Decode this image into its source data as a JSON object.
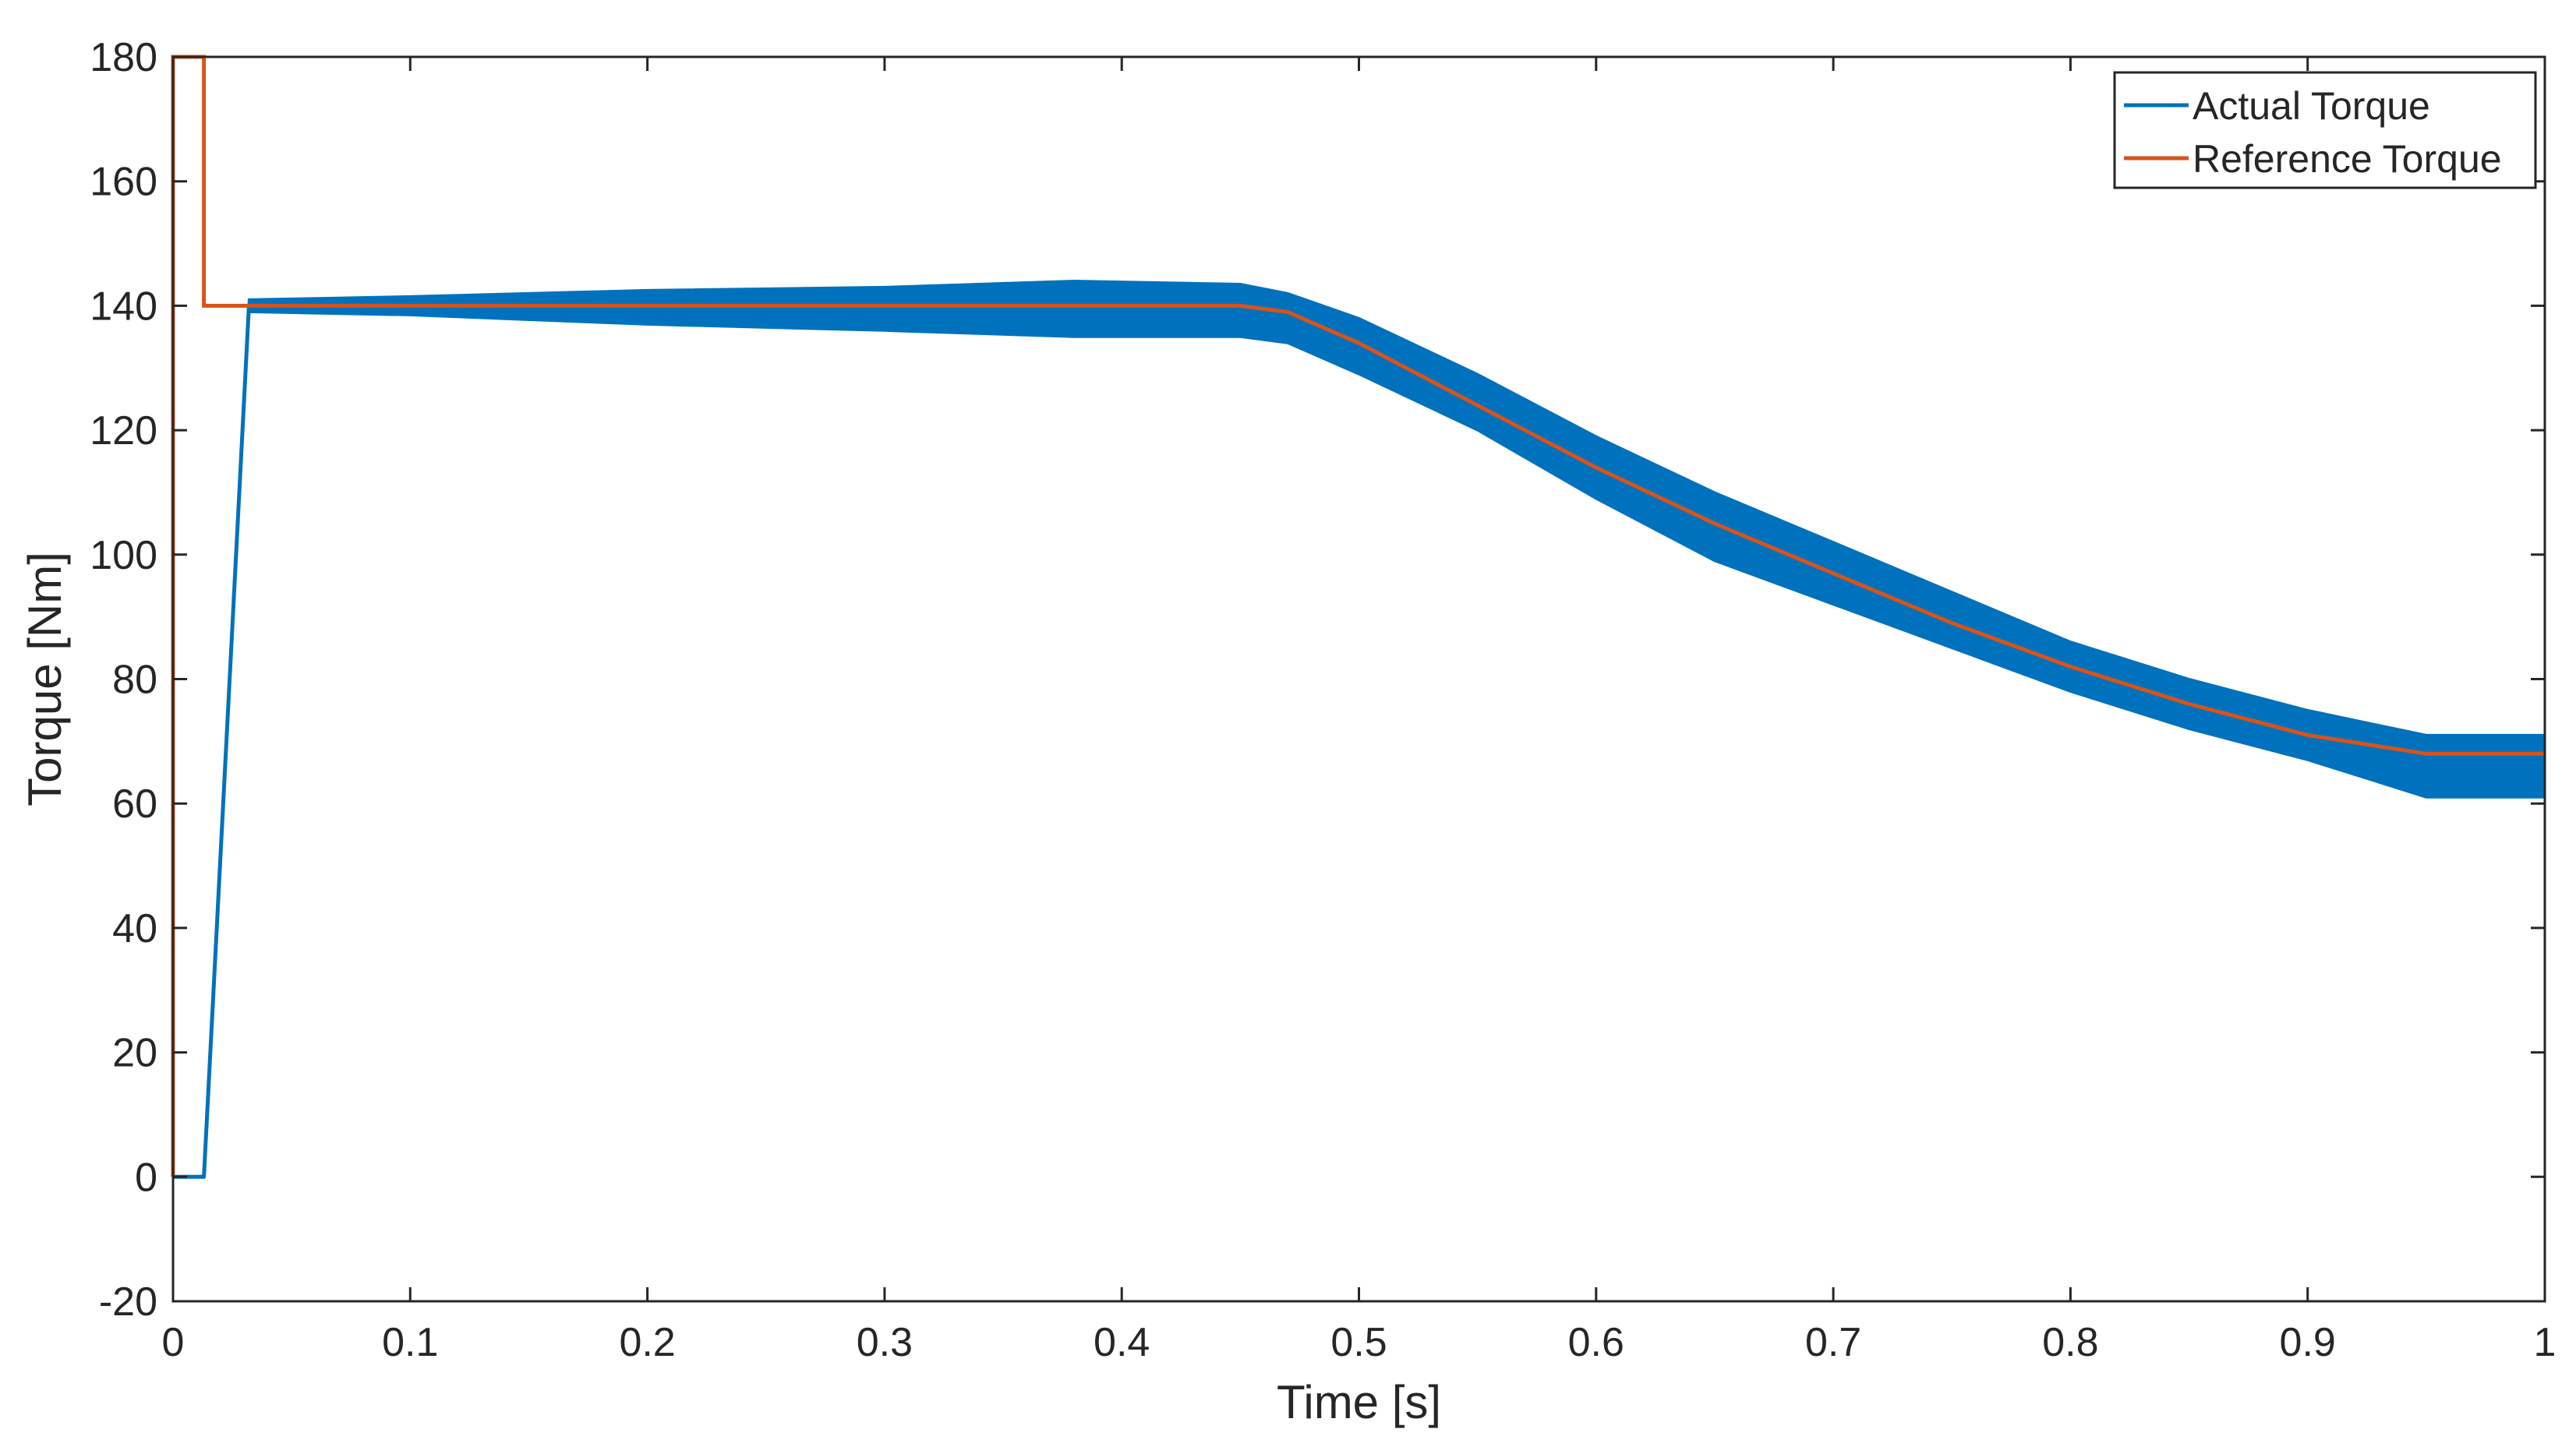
{
  "chart_data": {
    "type": "line",
    "title": "",
    "xlabel": "Time [s]",
    "ylabel": "Torque [Nm]",
    "xlim": [
      0,
      1
    ],
    "ylim": [
      -20,
      180
    ],
    "xticks": [
      0,
      0.1,
      0.2,
      0.3,
      0.4,
      0.5,
      0.6,
      0.7,
      0.8,
      0.9,
      1
    ],
    "xtick_labels": [
      "0",
      "0.1",
      "0.2",
      "0.3",
      "0.4",
      "0.5",
      "0.6",
      "0.7",
      "0.8",
      "0.9",
      "1"
    ],
    "yticks": [
      -20,
      0,
      20,
      40,
      60,
      80,
      100,
      120,
      140,
      160,
      180
    ],
    "ytick_labels": [
      "-20",
      "0",
      "20",
      "40",
      "60",
      "80",
      "100",
      "120",
      "140",
      "160",
      "180"
    ],
    "grid": false,
    "legend_position": "top-right",
    "series": [
      {
        "name": "Actual Torque",
        "color": "#0072BD",
        "style": "high-frequency ripple band around the reference",
        "x": [
          0,
          0.013,
          0.032,
          0.1,
          0.2,
          0.3,
          0.38,
          0.45,
          0.47,
          0.5,
          0.55,
          0.6,
          0.65,
          0.7,
          0.75,
          0.8,
          0.85,
          0.9,
          0.95,
          1.0
        ],
        "center": [
          0,
          0,
          140,
          140,
          140,
          140,
          140,
          140,
          139,
          134,
          124,
          114,
          105,
          97,
          89,
          82,
          76,
          71,
          66,
          66
        ],
        "upper": [
          0,
          0,
          141,
          141.5,
          142.5,
          143,
          144,
          143.5,
          142,
          138,
          129,
          119,
          110,
          102,
          94,
          86,
          80,
          75,
          71,
          71
        ],
        "lower": [
          0,
          0,
          139,
          138.5,
          137,
          136,
          135,
          135,
          134,
          129,
          120,
          109,
          99,
          92,
          85,
          78,
          72,
          67,
          61,
          61
        ]
      },
      {
        "name": "Reference Torque",
        "color": "#D95319",
        "x": [
          0,
          0,
          0.013,
          0.013,
          0.45,
          0.47,
          0.5,
          0.55,
          0.6,
          0.65,
          0.7,
          0.75,
          0.8,
          0.85,
          0.9,
          0.95,
          1.0
        ],
        "values": [
          0,
          180,
          180,
          140,
          140,
          139,
          134,
          124,
          114,
          105,
          97,
          89,
          82,
          76,
          71,
          68,
          68
        ]
      }
    ]
  }
}
